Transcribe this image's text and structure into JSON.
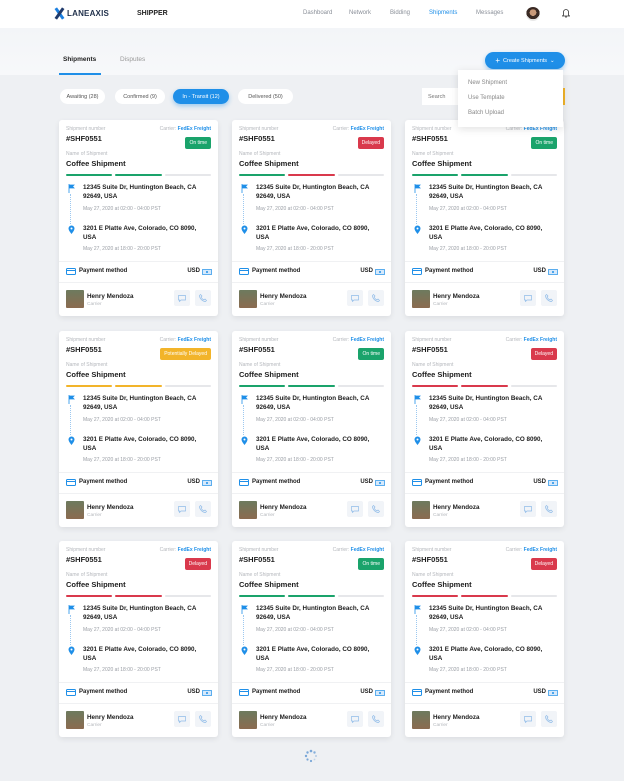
{
  "header": {
    "logo": "LANEAXIS",
    "role": "SHIPPER",
    "nav": [
      {
        "label": "Dashboard"
      },
      {
        "label": "Network"
      },
      {
        "label": "Bidding"
      },
      {
        "label": "Shipments",
        "active": true
      },
      {
        "label": "Messages"
      }
    ]
  },
  "tabs": [
    {
      "label": "Shipments",
      "active": true
    },
    {
      "label": "Disputes"
    }
  ],
  "create_button": {
    "label": "Create Shipments",
    "icon": "plus-icon"
  },
  "dropdown": [
    "New Shipment",
    "Use Template",
    "Batch Upload"
  ],
  "filters": [
    {
      "label": "Awaiting (28)"
    },
    {
      "label": "Confirmed (9)"
    },
    {
      "label": "In - Transit (12)",
      "active": true
    },
    {
      "label": "Delivered (50)"
    }
  ],
  "search": {
    "placeholder": "Search"
  },
  "labels": {
    "shipment_number": "Shipment number",
    "carrier": "Carrier:",
    "name_of_shipment": "Name of Shipment",
    "payment": "Payment method",
    "currency": "USD",
    "carrier_role": "Carrier"
  },
  "colors": {
    "accent": "#1f8fe8",
    "on_time": "#1aa36b",
    "delayed": "#d9394c",
    "potentially_delayed": "#f2b42a"
  },
  "cards": [
    {
      "number": "#SHF0551",
      "carrier": "FedEx Freight",
      "status": "On time",
      "status_type": "on_time",
      "name": "Coffee Shipment",
      "progress": [
        "on_time",
        "on_time",
        "none"
      ],
      "pickup": "12345 Suite Dr, Huntington Beach, CA 92649, USA",
      "pickup_date": "May 27, 2020 at 02:00 - 04:00 PST",
      "dropoff": "3201 E Platte Ave, Colorado, CO 8090, USA",
      "dropoff_date": "May 27, 2020 at 18:00 - 20:00 PST",
      "person": "Henry Mendoza"
    },
    {
      "number": "#SHF0551",
      "carrier": "FedEx Freight",
      "status": "Delayed",
      "status_type": "delayed",
      "name": "Coffee Shipment",
      "progress": [
        "on_time",
        "delayed",
        "none"
      ],
      "pickup": "12345 Suite Dr, Huntington Beach, CA 92649, USA",
      "pickup_date": "May 27, 2020 at 02:00 - 04:00 PST",
      "dropoff": "3201 E Platte Ave, Colorado, CO 8090, USA",
      "dropoff_date": "May 27, 2020 at 18:00 - 20:00 PST",
      "person": "Henry Mendoza"
    },
    {
      "number": "#SHF0551",
      "carrier": "FedEx Freight",
      "status": "On time",
      "status_type": "on_time",
      "name": "Coffee Shipment",
      "progress": [
        "on_time",
        "on_time",
        "none"
      ],
      "pickup": "12345 Suite Dr, Huntington Beach, CA 92649, USA",
      "pickup_date": "May 27, 2020 at 02:00 - 04:00 PST",
      "dropoff": "3201 E Platte Ave, Colorado, CO 8090, USA",
      "dropoff_date": "May 27, 2020 at 18:00 - 20:00 PST",
      "person": "Henry Mendoza"
    },
    {
      "number": "#SHF0551",
      "carrier": "FedEx Freight",
      "status": "Potentially Delayed",
      "status_type": "potentially_delayed",
      "name": "Coffee Shipment",
      "progress": [
        "potentially_delayed",
        "potentially_delayed",
        "none"
      ],
      "pickup": "12345 Suite Dr, Huntington Beach, CA 92649, USA",
      "pickup_date": "May 27, 2020 at 02:00 - 04:00 PST",
      "dropoff": "3201 E Platte Ave, Colorado, CO 8090, USA",
      "dropoff_date": "May 27, 2020 at 18:00 - 20:00 PST",
      "person": "Henry Mendoza"
    },
    {
      "number": "#SHF0551",
      "carrier": "FedEx Freight",
      "status": "On time",
      "status_type": "on_time",
      "name": "Coffee Shipment",
      "progress": [
        "on_time",
        "on_time",
        "none"
      ],
      "pickup": "12345 Suite Dr, Huntington Beach, CA 92649, USA",
      "pickup_date": "May 27, 2020 at 02:00 - 04:00 PST",
      "dropoff": "3201 E Platte Ave, Colorado, CO 8090, USA",
      "dropoff_date": "May 27, 2020 at 18:00 - 20:00 PST",
      "person": "Henry Mendoza"
    },
    {
      "number": "#SHF0551",
      "carrier": "FedEx Freight",
      "status": "Delayed",
      "status_type": "delayed",
      "name": "Coffee Shipment",
      "progress": [
        "delayed",
        "delayed",
        "none"
      ],
      "pickup": "12345 Suite Dr, Huntington Beach, CA 92649, USA",
      "pickup_date": "May 27, 2020 at 02:00 - 04:00 PST",
      "dropoff": "3201 E Platte Ave, Colorado, CO 8090, USA",
      "dropoff_date": "May 27, 2020 at 18:00 - 20:00 PST",
      "person": "Henry Mendoza"
    },
    {
      "number": "#SHF0551",
      "carrier": "FedEx Freight",
      "status": "Delayed",
      "status_type": "delayed",
      "name": "Coffee Shipment",
      "progress": [
        "delayed",
        "delayed",
        "none"
      ],
      "pickup": "12345 Suite Dr, Huntington Beach, CA 92649, USA",
      "pickup_date": "May 27, 2020 at 02:00 - 04:00 PST",
      "dropoff": "3201 E Platte Ave, Colorado, CO 8090, USA",
      "dropoff_date": "May 27, 2020 at 18:00 - 20:00 PST",
      "person": "Henry Mendoza"
    },
    {
      "number": "#SHF0551",
      "carrier": "FedEx Freight",
      "status": "On time",
      "status_type": "on_time",
      "name": "Coffee Shipment",
      "progress": [
        "on_time",
        "on_time",
        "none"
      ],
      "pickup": "12345 Suite Dr, Huntington Beach, CA 92649, USA",
      "pickup_date": "May 27, 2020 at 02:00 - 04:00 PST",
      "dropoff": "3201 E Platte Ave, Colorado, CO 8090, USA",
      "dropoff_date": "May 27, 2020 at 18:00 - 20:00 PST",
      "person": "Henry Mendoza"
    },
    {
      "number": "#SHF0551",
      "carrier": "FedEx Freight",
      "status": "Delayed",
      "status_type": "delayed",
      "name": "Coffee Shipment",
      "progress": [
        "delayed",
        "delayed",
        "none"
      ],
      "pickup": "12345 Suite Dr, Huntington Beach, CA 92649, USA",
      "pickup_date": "May 27, 2020 at 02:00 - 04:00 PST",
      "dropoff": "3201 E Platte Ave, Colorado, CO 8090, USA",
      "dropoff_date": "May 27, 2020 at 18:00 - 20:00 PST",
      "person": "Henry Mendoza"
    }
  ]
}
